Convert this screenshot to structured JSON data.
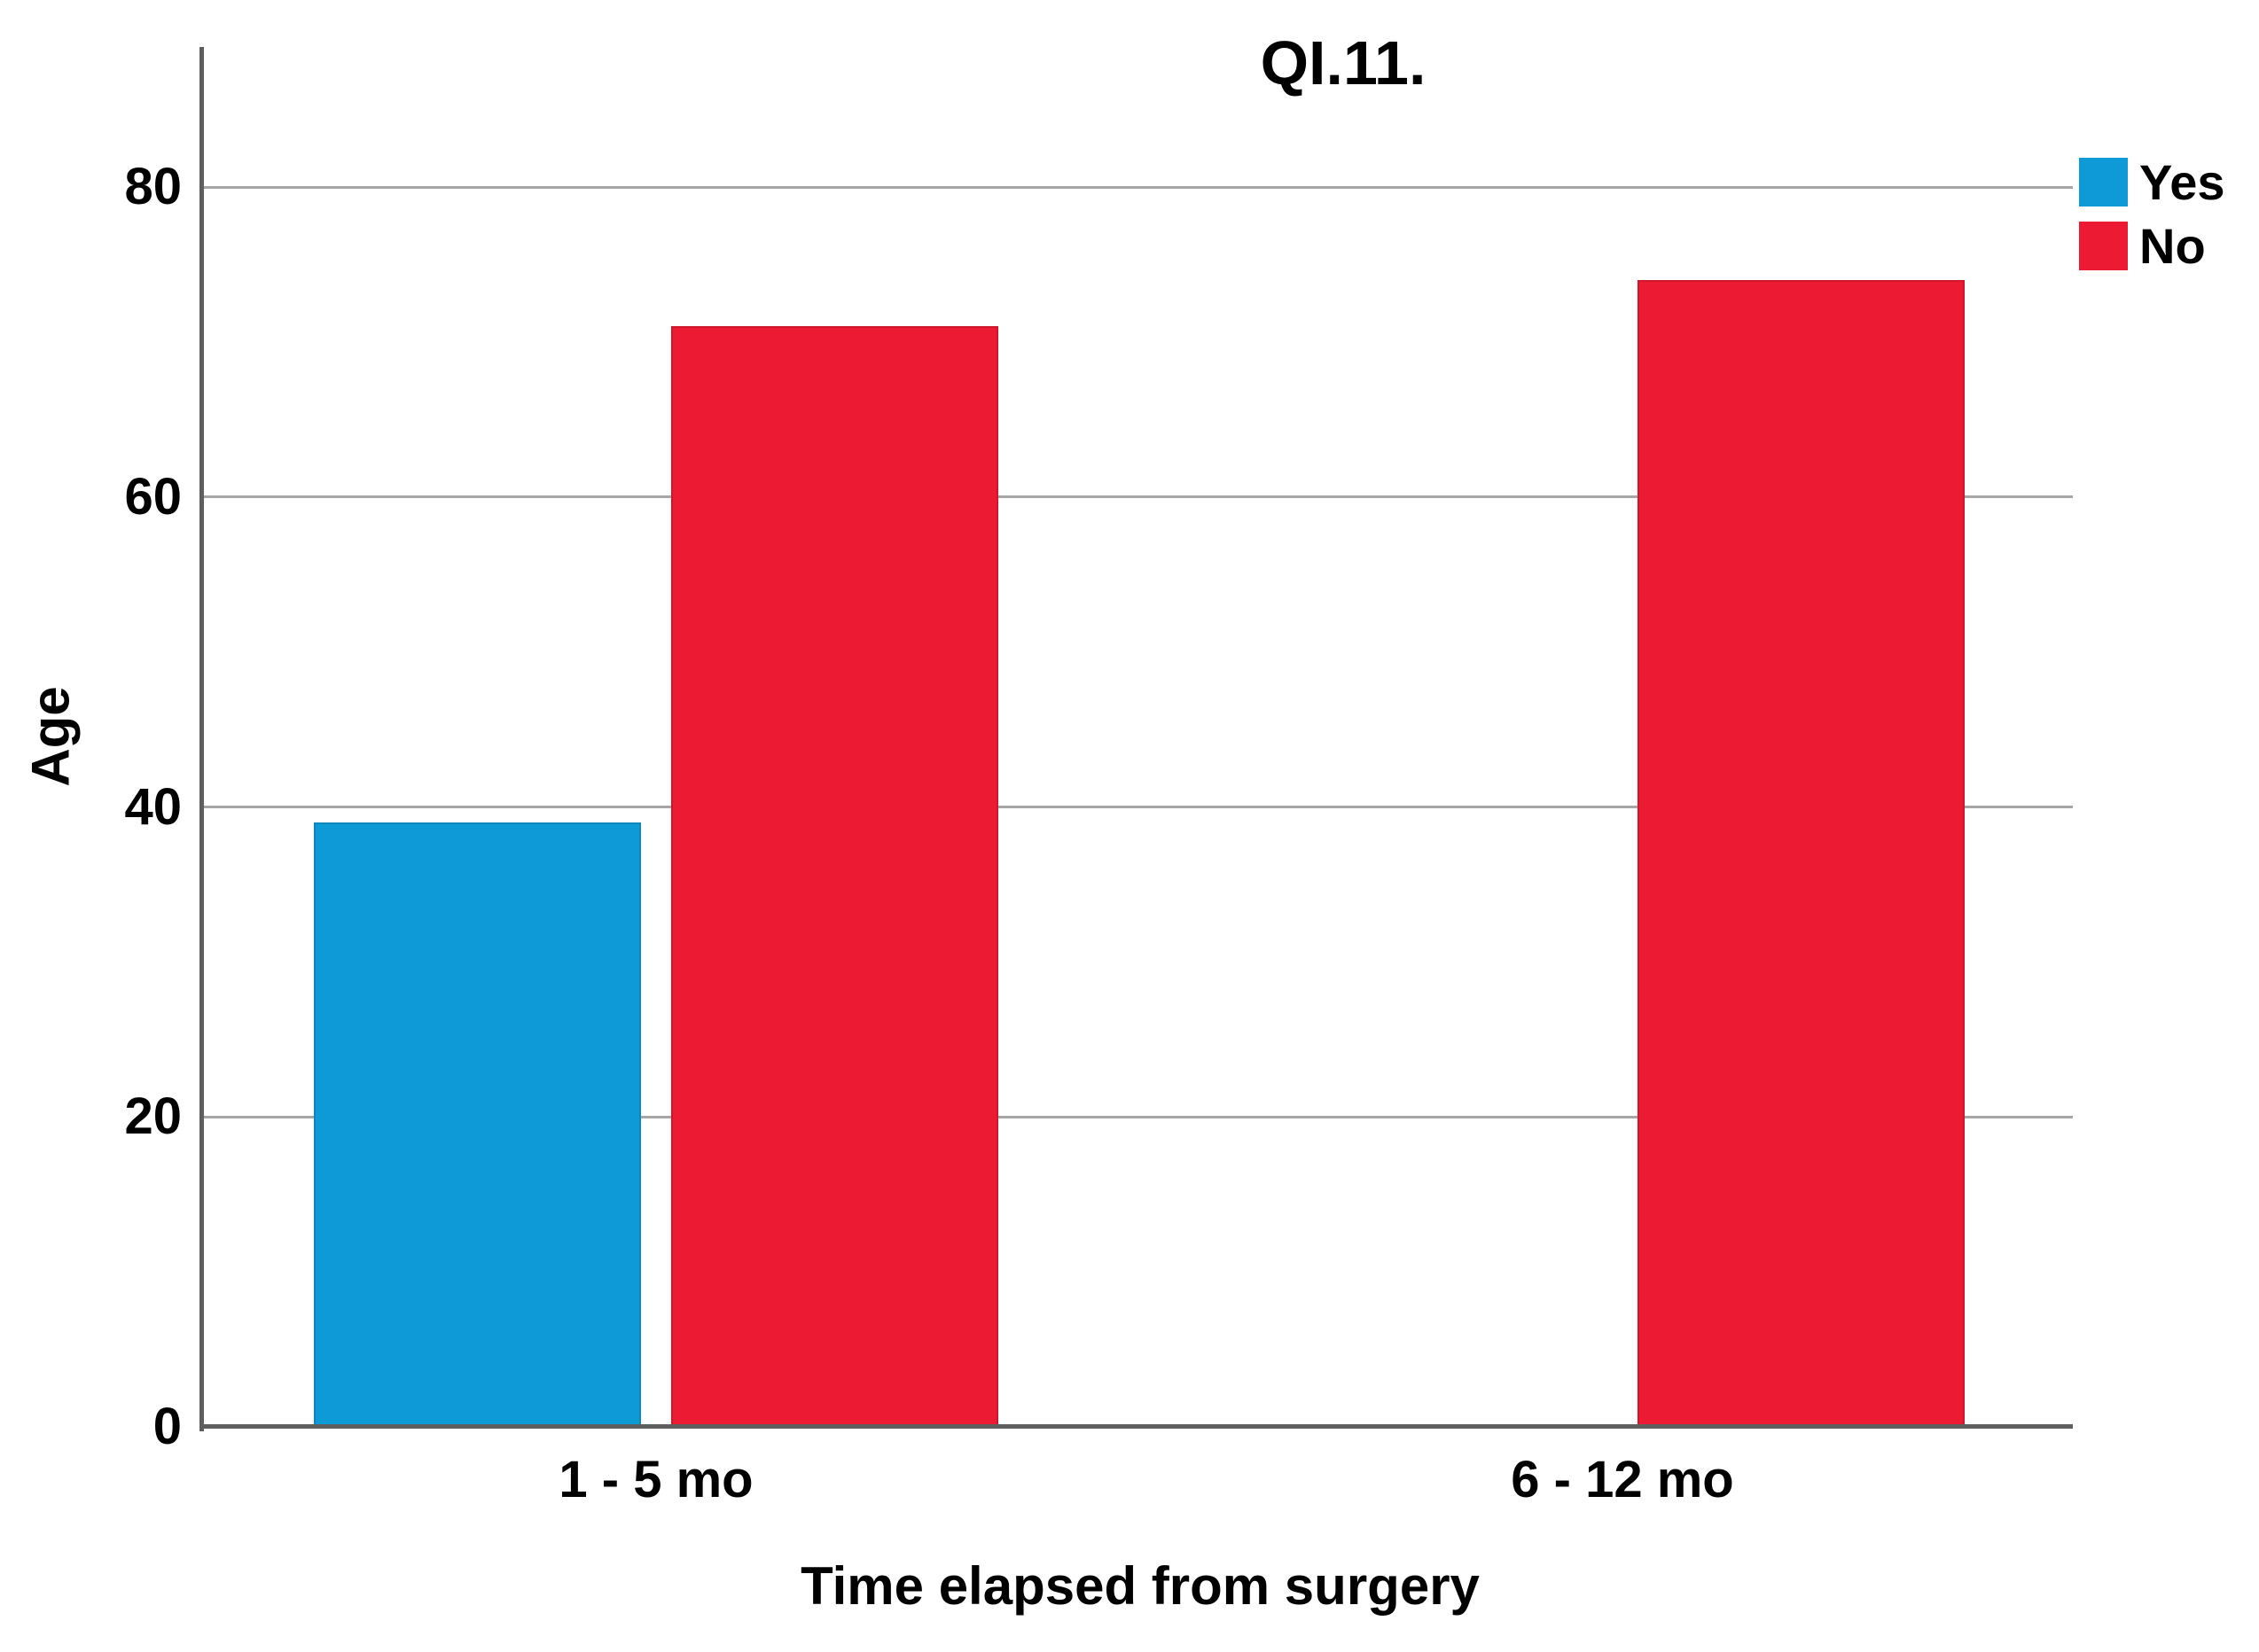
{
  "chart_data": {
    "type": "bar",
    "title": "QI.11.",
    "xlabel": "Time elapsed from surgery",
    "ylabel": "Age",
    "categories": [
      "1 - 5 mo",
      "6 - 12 mo"
    ],
    "series": [
      {
        "name": "Yes",
        "color": "#0D9AD6",
        "values": [
          39,
          0
        ]
      },
      {
        "name": "No",
        "color": "#EC1B33",
        "values": [
          71,
          74
        ]
      }
    ],
    "yticks": [
      0,
      20,
      40,
      60,
      80
    ],
    "ylim": [
      0,
      89
    ],
    "grid": "horizontal",
    "legend_position": "top-right",
    "axis_color": "#5E5E5E",
    "grid_color": "#A6A6A6",
    "background": "#FFFFFF"
  }
}
